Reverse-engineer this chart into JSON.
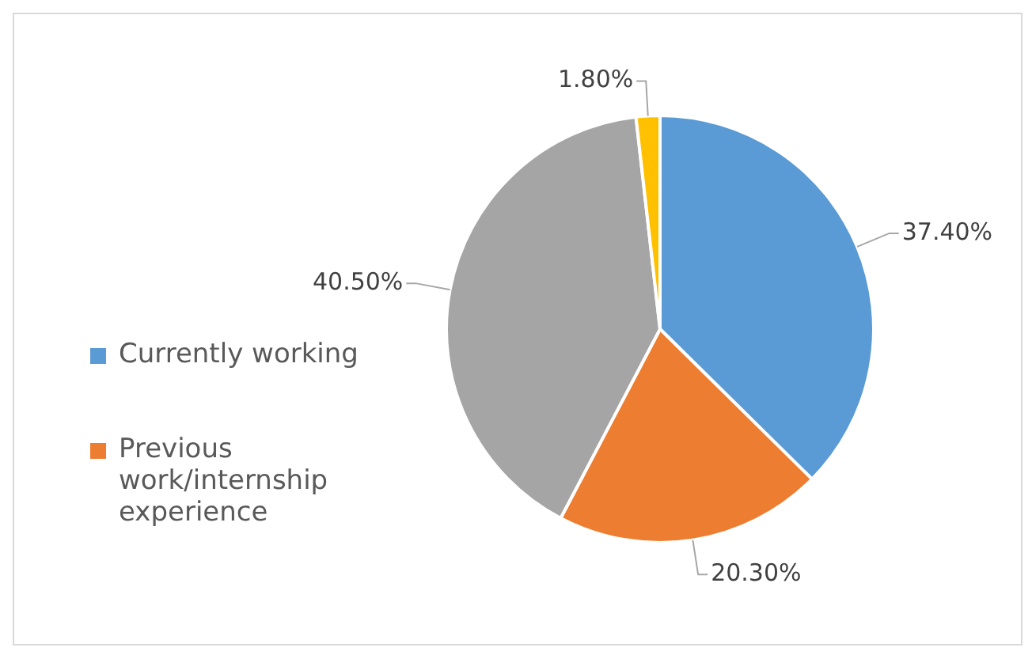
{
  "chart_data": {
    "type": "pie",
    "categories": [
      "Currently working",
      "Previous work/internship experience",
      null,
      null
    ],
    "values": [
      37.4,
      20.3,
      40.5,
      1.8
    ],
    "colors": [
      "#5b9bd5",
      "#ed7d31",
      "#a5a5a5",
      "#ffc000"
    ],
    "value_labels": [
      "37.40%",
      "20.30%",
      "40.50%",
      "1.80%"
    ],
    "legend": "left"
  }
}
